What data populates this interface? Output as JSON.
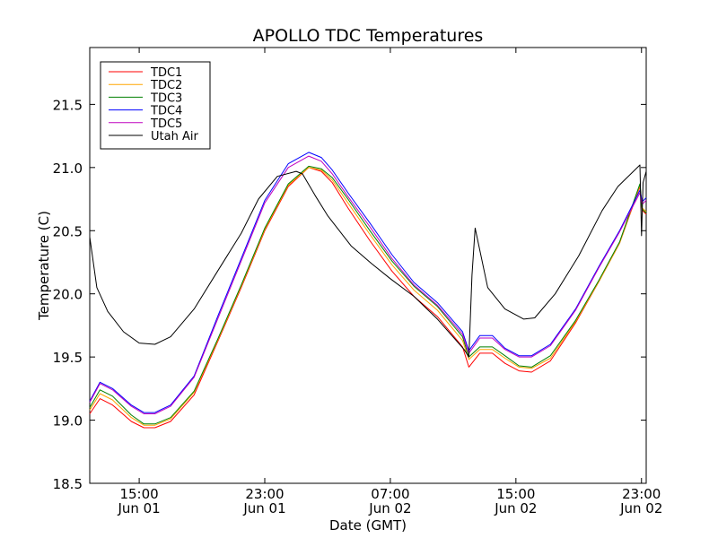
{
  "chart_data": {
    "type": "line",
    "title": "APOLLO TDC Temperatures",
    "xlabel": "Date (GMT)",
    "ylabel": "Temperature (C)",
    "x_unit": "hours since Jun 01 00:00 GMT",
    "xlim": [
      11.85,
      47.3
    ],
    "ylim": [
      18.5,
      21.95
    ],
    "grid": false,
    "legend_position": "top-left",
    "yticks": [
      {
        "value": 18.5,
        "label": "18.5"
      },
      {
        "value": 19.0,
        "label": "19.0"
      },
      {
        "value": 19.5,
        "label": "19.5"
      },
      {
        "value": 20.0,
        "label": "20.0"
      },
      {
        "value": 20.5,
        "label": "20.5"
      },
      {
        "value": 21.0,
        "label": "21.0"
      },
      {
        "value": 21.5,
        "label": "21.5"
      }
    ],
    "xticks": [
      {
        "value": 15,
        "time": "15:00",
        "date": "Jun 01"
      },
      {
        "value": 23,
        "time": "23:00",
        "date": "Jun 01"
      },
      {
        "value": 31,
        "time": "07:00",
        "date": "Jun 02"
      },
      {
        "value": 39,
        "time": "15:00",
        "date": "Jun 02"
      },
      {
        "value": 47,
        "time": "23:00",
        "date": "Jun 02"
      }
    ],
    "series": [
      {
        "name": "TDC1",
        "color": "#ff0000",
        "x": [
          11.85,
          12.5,
          13.3,
          14.5,
          15.3,
          16.0,
          17.0,
          18.5,
          20.0,
          21.5,
          23.0,
          24.5,
          25.8,
          26.6,
          27.3,
          28.3,
          29.7,
          31.1,
          32.5,
          34.0,
          35.6,
          36.0,
          36.7,
          37.5,
          38.3,
          39.2,
          40.0,
          41.2,
          42.8,
          44.3,
          45.6,
          46.9,
          47.05,
          47.3
        ],
        "y": [
          19.05,
          19.17,
          19.12,
          18.99,
          18.94,
          18.94,
          18.99,
          19.2,
          19.62,
          20.05,
          20.5,
          20.85,
          21.0,
          20.97,
          20.88,
          20.68,
          20.42,
          20.18,
          19.98,
          19.82,
          19.58,
          19.42,
          19.53,
          19.53,
          19.45,
          19.39,
          19.38,
          19.47,
          19.77,
          20.1,
          20.4,
          20.85,
          20.66,
          20.63
        ]
      },
      {
        "name": "TDC2",
        "color": "#ffa500",
        "x": [
          11.85,
          12.5,
          13.3,
          14.5,
          15.3,
          16.0,
          17.0,
          18.5,
          20.0,
          21.5,
          23.0,
          24.5,
          25.8,
          26.6,
          27.3,
          28.3,
          29.7,
          31.1,
          32.5,
          34.0,
          35.6,
          36.0,
          36.7,
          37.5,
          38.3,
          39.2,
          40.0,
          41.2,
          42.8,
          44.3,
          45.6,
          46.9,
          47.05,
          47.3
        ],
        "y": [
          19.08,
          19.21,
          19.16,
          19.02,
          18.96,
          18.96,
          19.01,
          19.22,
          19.63,
          20.06,
          20.51,
          20.86,
          21.0,
          20.98,
          20.9,
          20.72,
          20.47,
          20.23,
          20.03,
          19.87,
          19.63,
          19.48,
          19.56,
          19.56,
          19.49,
          19.42,
          19.41,
          19.49,
          19.78,
          20.1,
          20.4,
          20.86,
          20.68,
          20.65
        ]
      },
      {
        "name": "TDC3",
        "color": "#008000",
        "x": [
          11.85,
          12.5,
          13.3,
          14.5,
          15.3,
          16.0,
          17.0,
          18.5,
          20.0,
          21.5,
          23.0,
          24.5,
          25.8,
          26.6,
          27.3,
          28.3,
          29.7,
          31.1,
          32.5,
          34.0,
          35.6,
          36.0,
          36.7,
          37.5,
          38.3,
          39.2,
          40.0,
          41.2,
          42.8,
          44.3,
          45.6,
          46.9,
          47.05,
          47.3
        ],
        "y": [
          19.1,
          19.24,
          19.19,
          19.04,
          18.97,
          18.97,
          19.02,
          19.23,
          19.64,
          20.07,
          20.52,
          20.87,
          21.01,
          20.99,
          20.92,
          20.75,
          20.5,
          20.26,
          20.06,
          19.9,
          19.66,
          19.5,
          19.58,
          19.58,
          19.51,
          19.43,
          19.42,
          19.51,
          19.79,
          20.11,
          20.41,
          20.87,
          20.67,
          20.64
        ]
      },
      {
        "name": "TDC4",
        "color": "#0000ff",
        "x": [
          11.85,
          12.5,
          13.3,
          14.5,
          15.3,
          16.0,
          17.0,
          18.5,
          20.0,
          21.5,
          23.0,
          24.5,
          25.8,
          26.6,
          27.3,
          28.3,
          29.7,
          31.1,
          32.5,
          34.0,
          35.6,
          36.0,
          36.7,
          37.5,
          38.3,
          39.2,
          40.0,
          41.2,
          42.8,
          44.3,
          45.6,
          46.9,
          47.05,
          47.3
        ],
        "y": [
          19.15,
          19.3,
          19.25,
          19.12,
          19.06,
          19.06,
          19.12,
          19.35,
          19.82,
          20.28,
          20.74,
          21.03,
          21.12,
          21.08,
          20.98,
          20.8,
          20.56,
          20.31,
          20.09,
          19.93,
          19.7,
          19.55,
          19.67,
          19.67,
          19.57,
          19.51,
          19.51,
          19.6,
          19.88,
          20.22,
          20.5,
          20.82,
          20.73,
          20.76
        ]
      },
      {
        "name": "TDC5",
        "color": "#bf00bf",
        "x": [
          11.85,
          12.5,
          13.3,
          14.5,
          15.3,
          16.0,
          17.0,
          18.5,
          20.0,
          21.5,
          23.0,
          24.5,
          25.8,
          26.6,
          27.3,
          28.3,
          29.7,
          31.1,
          32.5,
          34.0,
          35.6,
          36.0,
          36.7,
          37.5,
          38.3,
          39.2,
          40.0,
          41.2,
          42.8,
          44.3,
          45.6,
          46.9,
          47.05,
          47.3
        ],
        "y": [
          19.14,
          19.29,
          19.24,
          19.11,
          19.05,
          19.05,
          19.11,
          19.34,
          19.8,
          20.26,
          20.72,
          21.0,
          21.09,
          21.05,
          20.95,
          20.77,
          20.53,
          20.28,
          20.07,
          19.91,
          19.68,
          19.53,
          19.65,
          19.65,
          19.56,
          19.5,
          19.5,
          19.59,
          19.87,
          20.21,
          20.49,
          20.8,
          20.71,
          20.74
        ]
      },
      {
        "name": "Utah Air",
        "color": "#000000",
        "x": [
          11.85,
          12.3,
          13.0,
          14.0,
          15.0,
          16.0,
          17.0,
          18.5,
          20.0,
          21.5,
          22.6,
          23.8,
          25.0,
          25.4,
          26.2,
          27.0,
          28.5,
          29.8,
          31.0,
          32.5,
          34.0,
          35.7,
          36.0,
          36.2,
          36.4,
          37.2,
          38.3,
          39.5,
          40.2,
          41.5,
          43.0,
          44.5,
          45.5,
          46.9,
          47.0,
          47.1,
          47.3
        ],
        "y": [
          20.45,
          20.05,
          19.86,
          19.7,
          19.61,
          19.6,
          19.66,
          19.88,
          20.18,
          20.48,
          20.75,
          20.93,
          20.97,
          20.95,
          20.78,
          20.62,
          20.38,
          20.24,
          20.12,
          19.98,
          19.8,
          19.56,
          19.5,
          20.15,
          20.52,
          20.05,
          19.88,
          19.8,
          19.81,
          20.0,
          20.3,
          20.66,
          20.85,
          21.02,
          20.46,
          20.88,
          20.97
        ]
      }
    ]
  }
}
